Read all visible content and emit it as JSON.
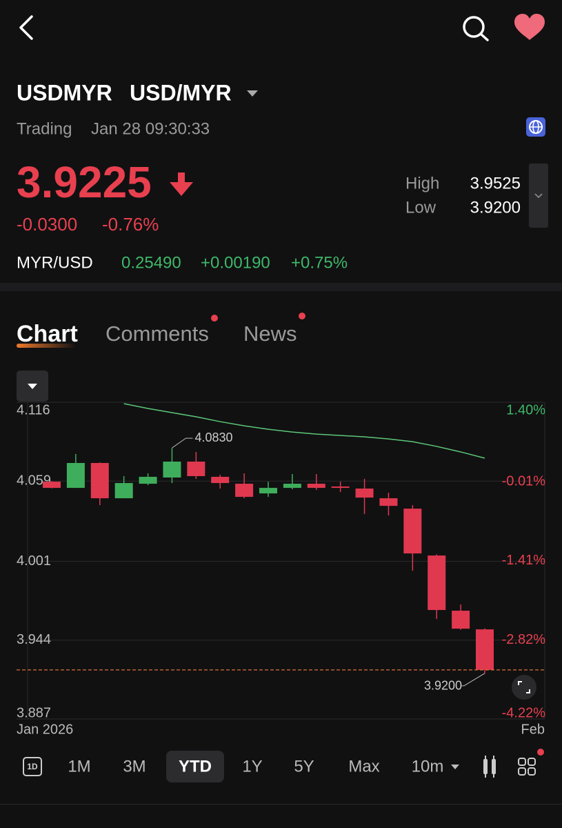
{
  "quote": {
    "symbol": "USDMYR",
    "name": "USD/MYR",
    "status": "Trading",
    "time": "Jan 28 09:30:33",
    "price": "3.9225",
    "change": "-0.0300",
    "change_pct": "-0.76%",
    "high_label": "High",
    "high": "3.9525",
    "low_label": "Low",
    "low": "3.9200",
    "inverse_pair": "MYR/USD",
    "inverse_price": "0.25490",
    "inverse_change": "+0.00190",
    "inverse_change_pct": "+0.75%"
  },
  "tabs": [
    "Chart",
    "Comments",
    "News"
  ],
  "interval_icon": "1D",
  "periods": [
    "1M",
    "3M",
    "YTD",
    "1Y",
    "5Y",
    "Max",
    "10m"
  ],
  "selected_period_index": 2,
  "chart_data": {
    "type": "candlestick",
    "x_labels": [
      "Jan 2026",
      "Feb"
    ],
    "up_color": "#3fae5c",
    "down_color": "#e0384f",
    "open": [
      4.0586,
      4.0541,
      4.0721,
      4.0466,
      4.0571,
      4.0616,
      4.0731,
      4.0621,
      4.0571,
      4.0501,
      4.0541,
      4.0571,
      4.0551,
      4.0536,
      4.0466,
      4.0391,
      4.0052,
      3.9653,
      3.9518
    ],
    "high": [
      4.059,
      4.0786,
      4.0725,
      4.0626,
      4.0646,
      4.083,
      4.0801,
      4.0636,
      4.0646,
      4.0586,
      4.0641,
      4.0641,
      4.0586,
      4.0606,
      4.0506,
      4.0416,
      4.006,
      3.9698,
      3.9525
    ],
    "low": [
      4.0538,
      4.0541,
      4.0416,
      4.0466,
      4.0561,
      4.0576,
      4.0606,
      4.0536,
      4.0466,
      4.0476,
      4.0531,
      4.0526,
      4.0511,
      4.0352,
      4.0342,
      3.9942,
      3.9593,
      3.9515,
      3.92
    ],
    "close": [
      4.0541,
      4.0721,
      4.0466,
      4.0576,
      4.0621,
      4.0731,
      4.0626,
      4.0576,
      4.0476,
      4.0541,
      4.0571,
      4.0541,
      4.0541,
      4.0471,
      4.0411,
      4.0067,
      3.9658,
      3.9523,
      3.9225
    ],
    "ma": {
      "color": "#5cc878",
      "values": [
        null,
        null,
        null,
        4.115,
        4.1115,
        4.1085,
        4.1055,
        4.102,
        4.099,
        4.0965,
        4.0945,
        4.093,
        4.092,
        4.091,
        4.0895,
        4.0875,
        4.0841,
        4.0801,
        4.0756
      ]
    },
    "max_label": "4.0830",
    "min_label": "3.9200",
    "last_line_color": "#e0703a",
    "ylim": [
      3.887,
      4.116
    ],
    "yticks": [
      4.116,
      4.059,
      4.001,
      3.944,
      3.887
    ],
    "y2lim": [
      -4.22,
      1.4
    ],
    "y2ticks": [
      {
        "value": 1.4,
        "label": "1.40%"
      },
      {
        "value": -0.01,
        "label": "-0.01%"
      },
      {
        "value": -1.41,
        "label": "-1.41%"
      },
      {
        "value": -2.82,
        "label": "-2.82%"
      },
      {
        "value": -4.22,
        "label": "-4.22%"
      }
    ],
    "grid": true
  }
}
